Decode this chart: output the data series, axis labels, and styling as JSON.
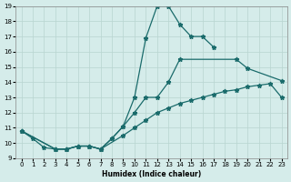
{
  "xlabel": "Humidex (Indice chaleur)",
  "xlim": [
    -0.5,
    23.5
  ],
  "ylim": [
    9,
    19
  ],
  "xticks": [
    0,
    1,
    2,
    3,
    4,
    5,
    6,
    7,
    8,
    9,
    10,
    11,
    12,
    13,
    14,
    15,
    16,
    17,
    18,
    19,
    20,
    21,
    22,
    23
  ],
  "yticks": [
    9,
    10,
    11,
    12,
    13,
    14,
    15,
    16,
    17,
    18,
    19
  ],
  "background_color": "#d5ecea",
  "grid_color": "#b8d4d0",
  "line_color": "#1a6b6b",
  "line1_x": [
    0,
    1,
    2,
    3,
    4,
    5,
    6,
    7,
    8,
    9,
    10,
    11,
    12,
    13,
    14,
    15,
    16,
    17
  ],
  "line1_y": [
    10.8,
    10.3,
    9.7,
    9.6,
    9.6,
    9.8,
    9.8,
    9.6,
    10.3,
    11.1,
    13.0,
    16.9,
    19.0,
    19.0,
    17.8,
    17.0,
    17.0,
    16.3
  ],
  "line2_x": [
    0,
    3,
    4,
    5,
    6,
    7,
    8,
    9,
    10,
    11,
    12,
    13,
    14,
    19,
    20,
    23
  ],
  "line2_y": [
    10.8,
    9.6,
    9.6,
    9.8,
    9.8,
    9.6,
    10.3,
    11.1,
    12.0,
    13.0,
    13.0,
    14.0,
    15.5,
    15.5,
    14.9,
    14.1
  ],
  "line3_x": [
    0,
    3,
    4,
    5,
    6,
    7,
    9,
    10,
    11,
    12,
    13,
    14,
    15,
    16,
    17,
    18,
    19,
    20,
    21,
    22,
    23
  ],
  "line3_y": [
    10.8,
    9.6,
    9.6,
    9.8,
    9.8,
    9.6,
    10.5,
    11.0,
    11.5,
    12.0,
    12.3,
    12.6,
    12.8,
    13.0,
    13.2,
    13.4,
    13.5,
    13.7,
    13.8,
    13.9,
    13.0
  ]
}
